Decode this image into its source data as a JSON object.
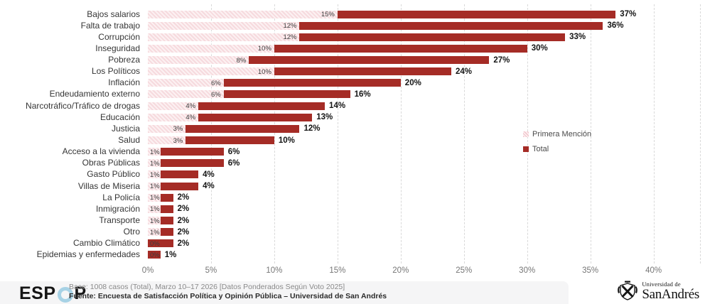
{
  "chart_data": {
    "type": "bar",
    "orientation": "horizontal",
    "stacked": true,
    "categories": [
      "Bajos salarios",
      "Falta de trabajo",
      "Corrupción",
      "Inseguridad",
      "Pobreza",
      "Los Políticos",
      "Inflación",
      "Endeudamiento externo",
      "Narcotráfico/Tráfico de drogas",
      "Educación",
      "Justicia",
      "Salud",
      "Acceso a la vivienda",
      "Obras Públicas",
      "Gasto Público",
      "Villas de Miseria",
      "La Policía",
      "Inmigración",
      "Transporte",
      "Otro",
      "Cambio Climático",
      "Epidemias y enfermedades"
    ],
    "series": [
      {
        "name": "Primera Mención",
        "values": [
          15,
          12,
          12,
          10,
          8,
          10,
          6,
          6,
          4,
          4,
          3,
          3,
          1,
          1,
          1,
          1,
          1,
          1,
          1,
          1,
          0,
          0
        ]
      },
      {
        "name": "Total",
        "values": [
          37,
          36,
          33,
          30,
          27,
          24,
          20,
          16,
          14,
          13,
          12,
          10,
          6,
          6,
          4,
          4,
          2,
          2,
          2,
          2,
          2,
          1
        ]
      }
    ],
    "value_suffix": "%",
    "x_axis": {
      "min": 0,
      "max": 43.7,
      "tick_step": 5,
      "ticks": [
        "0%",
        "5%",
        "10%",
        "15%",
        "20%",
        "25%",
        "30%",
        "35%",
        "40%"
      ],
      "grid": "dashed-vertical"
    },
    "legend": {
      "position": "middle-right",
      "entries": [
        {
          "label": "Primera Mención",
          "swatch": "hatched-pink"
        },
        {
          "label": "Total",
          "swatch": "solid-dark-red"
        }
      ]
    },
    "colors": {
      "primera_mencion_fill": "#f6dade",
      "primera_mencion_hatch": "#fcf1f2",
      "total_fill": "#a52c26",
      "gridline": "#d9d9d9",
      "total_label": "#141414",
      "small_label": "#3d3d3d",
      "tick_label": "#767676"
    }
  },
  "footer": {
    "logo_prefix": "ESP",
    "logo_suffix": "P",
    "logo_ring_color": "#a7d2e5",
    "base_line": "Base: 1008 casos (Total), Marzo 10–17 2026 [Datos Ponderados Según Voto 2025]",
    "fuente_line": "Fuente: Encuesta de Satisfacción Política y Opinión Pública – Universidad de San Andrés",
    "university_small": "Universidad de",
    "university_name": "SanAndrés"
  }
}
